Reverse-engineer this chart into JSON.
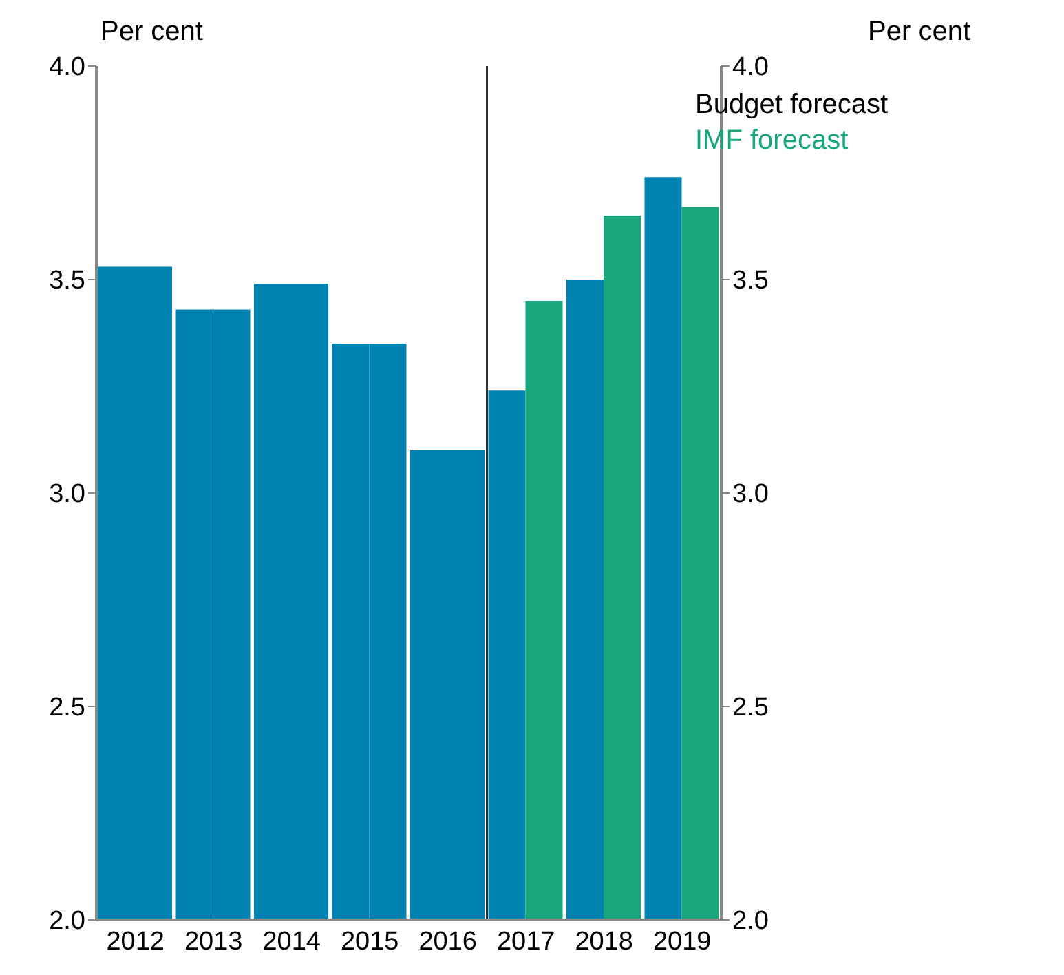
{
  "chart_data": {
    "type": "bar",
    "x": [
      2012,
      2013,
      2014,
      2015,
      2016,
      2017,
      2018,
      2019
    ],
    "xlim": [
      2011.5,
      2019.5
    ],
    "xticks": [
      2012,
      2013,
      2014,
      2015,
      2016,
      2017,
      2018,
      2019
    ],
    "series": [
      {
        "name": "Budget forecast",
        "color": "#0083b0",
        "values": [
          3.53,
          3.43,
          3.49,
          3.35,
          3.1,
          3.24,
          3.5,
          3.74
        ]
      },
      {
        "name": "IMF forecast",
        "color": "#1aa67c",
        "colors": [
          "#0083b0",
          "#0083b0",
          "#0083b0",
          "#0083b0",
          "#0083b0",
          "#1aa67c",
          "#1aa67c",
          "#1aa67c"
        ],
        "values": [
          3.53,
          3.43,
          3.49,
          3.35,
          3.1,
          3.45,
          3.65,
          3.67
        ]
      }
    ],
    "ylabel": "Per cent",
    "y2label": "Per cent",
    "ylim": [
      2,
      4
    ],
    "yticks": [
      {
        "value": 2,
        "label": "2.0"
      },
      {
        "value": 2.5,
        "label": "2.5"
      },
      {
        "value": 3,
        "label": "3.0"
      },
      {
        "value": 3.5,
        "label": "3.5"
      },
      {
        "value": 4,
        "label": "4.0"
      }
    ],
    "y2lim": [
      2,
      4
    ],
    "y2ticks": [
      {
        "value": 2,
        "label": "2.0"
      },
      {
        "value": 2.5,
        "label": "2.5"
      },
      {
        "value": 3,
        "label": "3.0"
      },
      {
        "value": 3.5,
        "label": "3.5"
      },
      {
        "value": 4,
        "label": "4.0"
      }
    ],
    "ref_lines": [
      {
        "axis": "x",
        "value": 2016.5,
        "color": "#333333"
      }
    ],
    "legend": "top right",
    "grid": false
  }
}
